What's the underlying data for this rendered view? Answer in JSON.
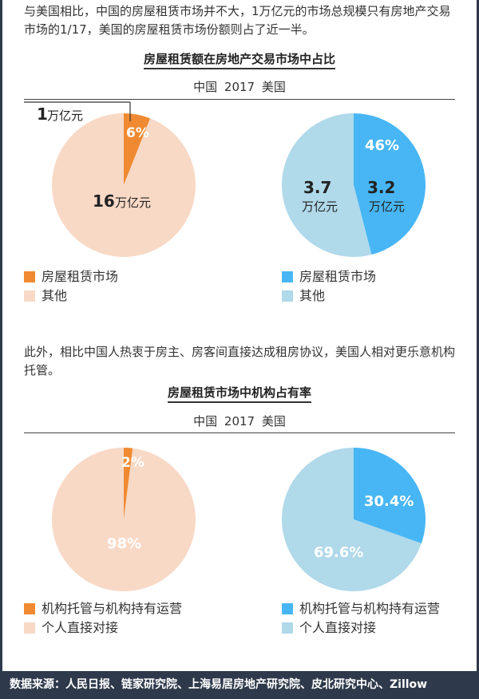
{
  "intro_text_1": "与美国相比，中国的房屋租赁市场并不大，1万亿元的市场总规模只有房地产交易市场的1/17，美国的房屋租赁市场份额则占了近一半。",
  "intro_text_2": "此外，相比中国人热衷于房主、房客间直接达成租房协议，美国人相对更乐意机构托管。",
  "footer_source": "数据来源：人民日报、链家研究院、上海易居房地产研究院、皮北研究中心、Zillow",
  "colors": {
    "china_main": "#f08a32",
    "china_other": "#f8d9c6",
    "us_main": "#48b6f4",
    "us_other": "#b0d9ea",
    "footer_bg": "#2e3a4b"
  },
  "chart_data": [
    {
      "type": "pie",
      "title": "房屋租赁额在房地产交易市场中占比",
      "subtitle": "中国   2017   美国",
      "legend": [
        "房屋租赁市场",
        "其他"
      ],
      "pies": [
        {
          "name": "中国",
          "slices": [
            {
              "label": "房屋租赁市场",
              "value": 6,
              "display": "6%"
            },
            {
              "label": "其他",
              "value": 94
            }
          ],
          "annotations": [
            {
              "num": "1",
              "unit": "万亿元"
            },
            {
              "num": "16",
              "unit": "万亿元"
            }
          ]
        },
        {
          "name": "美国",
          "slices": [
            {
              "label": "房屋租赁市场",
              "value": 46,
              "display": "46%"
            },
            {
              "label": "其他",
              "value": 54
            }
          ],
          "annotations": [
            {
              "num": "3.2",
              "unit": "万亿元"
            },
            {
              "num": "3.7",
              "unit": "万亿元"
            }
          ]
        }
      ]
    },
    {
      "type": "pie",
      "title": "房屋租赁市场中机构占有率",
      "subtitle": "中国   2017   美国",
      "legend": [
        "机构托管与机构持有运营",
        "个人直接对接"
      ],
      "pies": [
        {
          "name": "中国",
          "slices": [
            {
              "label": "机构托管与机构持有运营",
              "value": 2,
              "display": "2%"
            },
            {
              "label": "个人直接对接",
              "value": 98,
              "display": "98%"
            }
          ]
        },
        {
          "name": "美国",
          "slices": [
            {
              "label": "机构托管与机构持有运营",
              "value": 30.4,
              "display": "30.4%"
            },
            {
              "label": "个人直接对接",
              "value": 69.6,
              "display": "69.6%"
            }
          ]
        }
      ]
    }
  ]
}
